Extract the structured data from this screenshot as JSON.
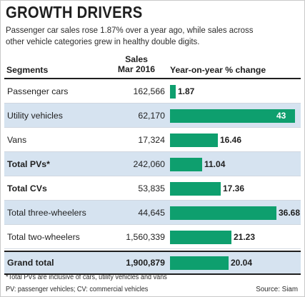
{
  "title": "GROWTH DRIVERS",
  "subtitle": "Passenger car sales rose 1.87% over a year ago, while sales across other vehicle categories grew in healthy double digits.",
  "columns": {
    "segments": "Segments",
    "sales_line1": "Sales",
    "sales_line2": "Mar 2016",
    "yoy": "Year-on-year % change"
  },
  "chart_data": {
    "type": "bar",
    "orientation": "horizontal",
    "title": "GROWTH DRIVERS",
    "xlabel": "Year-on-year % change",
    "xlim": [
      0,
      43
    ],
    "categories": [
      "Passenger cars",
      "Utility vehicles",
      "Vans",
      "Total PVs*",
      "Total CVs",
      "Total three-wheelers",
      "Total two-wheelers",
      "Grand total"
    ],
    "sales": [
      "162,566",
      "62,170",
      "17,324",
      "242,060",
      "53,835",
      "44,645",
      "1,560,339",
      "1,900,879"
    ],
    "values": [
      1.87,
      43,
      16.46,
      11.04,
      17.36,
      36.68,
      21.23,
      20.04
    ],
    "value_labels": [
      "1.87",
      "43",
      "16.46",
      "11.04",
      "17.36",
      "36.68",
      "21.23",
      "20.04"
    ],
    "bold_rows": [
      false,
      false,
      false,
      true,
      true,
      false,
      false,
      true
    ],
    "shaded_rows": [
      false,
      true,
      false,
      true,
      false,
      true,
      false,
      true
    ],
    "bar_color": "#0e9f6e",
    "row_shade_color": "#d6e3f0"
  },
  "footnotes": {
    "note1": "*Total PVs are inclusive of cars, utility vehicles and vans",
    "note2": "PV: passenger vehicles; CV: commercial vehicles",
    "source": "Source: Siam"
  }
}
